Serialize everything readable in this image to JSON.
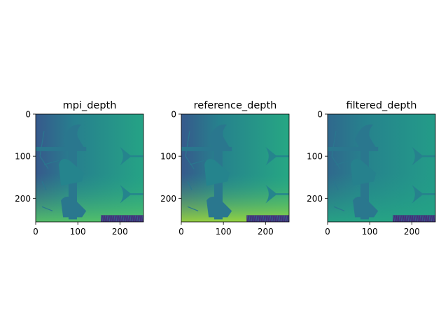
{
  "figure": {
    "colormap": "viridis",
    "background": "#ffffff"
  },
  "chart_data": [
    {
      "type": "heatmap",
      "title": "mpi_depth",
      "xlabel": "",
      "ylabel": "",
      "x_ticks": [
        "0",
        "100",
        "200"
      ],
      "y_ticks": [
        "0",
        "100",
        "200"
      ],
      "x_tick_values": [
        0,
        100,
        200
      ],
      "y_tick_values": [
        0,
        100,
        200
      ],
      "xlim": [
        0,
        256
      ],
      "ylim": [
        256,
        0
      ],
      "grid": false,
      "image": {
        "left_value": 0.28,
        "right_value": 0.58,
        "bottom_value": 0.74,
        "foreground_value": 0.4,
        "shadow_value": 0.45,
        "floor_band_value": 0.12
      }
    },
    {
      "type": "heatmap",
      "title": "reference_depth",
      "xlabel": "",
      "ylabel": "",
      "x_ticks": [
        "0",
        "100",
        "200"
      ],
      "y_ticks": [
        "0",
        "100",
        "200"
      ],
      "x_tick_values": [
        0,
        100,
        200
      ],
      "y_tick_values": [
        0,
        100,
        200
      ],
      "xlim": [
        0,
        256
      ],
      "ylim": [
        256,
        0
      ],
      "grid": false,
      "image": {
        "left_value": 0.28,
        "right_value": 0.6,
        "bottom_value": 0.86,
        "foreground_value": 0.4,
        "shadow_value": 0.45,
        "floor_band_value": 0.12
      }
    },
    {
      "type": "heatmap",
      "title": "filtered_depth",
      "xlabel": "",
      "ylabel": "",
      "x_ticks": [
        "0",
        "100",
        "200"
      ],
      "y_ticks": [
        "0",
        "100",
        "200"
      ],
      "x_tick_values": [
        0,
        100,
        200
      ],
      "y_tick_values": [
        0,
        100,
        200
      ],
      "xlim": [
        0,
        256
      ],
      "ylim": [
        256,
        0
      ],
      "grid": false,
      "image": {
        "left_value": 0.34,
        "right_value": 0.55,
        "bottom_value": 0.6,
        "foreground_value": 0.4,
        "shadow_value": 0.44,
        "floor_band_value": 0.12
      }
    }
  ]
}
